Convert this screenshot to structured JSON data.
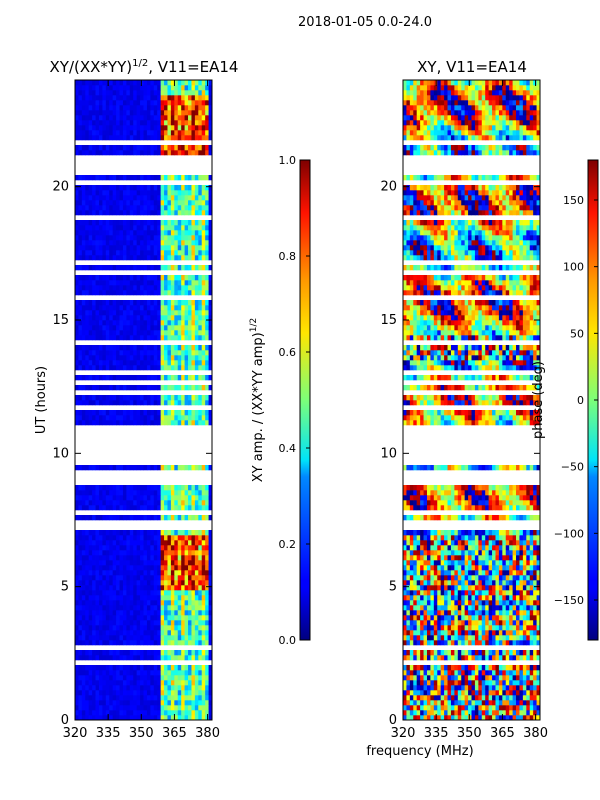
{
  "suptitle": "2018-01-05 0.0-24.0",
  "xlabel_shared": "frequency (MHz)",
  "chart_data": [
    {
      "type": "heatmap",
      "title_main": "XY/(XX*YY)",
      "title_sup": "1/2",
      "title_tail": ", V11=EA14",
      "ylabel": "UT (hours)",
      "xlim": [
        320,
        382
      ],
      "ylim": [
        0,
        24
      ],
      "xticks": [
        "320",
        "335",
        "350",
        "365",
        "380"
      ],
      "xtick_values": [
        320,
        335,
        350,
        365,
        380
      ],
      "yticks": [
        "0",
        "5",
        "10",
        "15",
        "20"
      ],
      "ytick_values": [
        0,
        5,
        10,
        15,
        20
      ],
      "bright_band_mhz": [
        359,
        381
      ],
      "colorbar": {
        "label_main": "XY amp. / (XX*YY amp)",
        "label_sup": "1/2",
        "ticks": [
          "0.0",
          "0.2",
          "0.4",
          "0.6",
          "0.8",
          "1.0"
        ],
        "tick_values": [
          0.0,
          0.2,
          0.4,
          0.6,
          0.8,
          1.0
        ],
        "range": [
          0.0,
          1.0
        ]
      }
    },
    {
      "type": "heatmap",
      "title_main": "XY, V11=EA14",
      "ylabel": "",
      "xlim": [
        320,
        382
      ],
      "ylim": [
        0,
        24
      ],
      "xticks": [
        "320",
        "335",
        "350",
        "365",
        "380"
      ],
      "xtick_values": [
        320,
        335,
        350,
        365,
        380
      ],
      "yticks": [
        "0",
        "5",
        "10",
        "15",
        "20"
      ],
      "ytick_values": [
        0,
        5,
        10,
        15,
        20
      ],
      "colorbar": {
        "label_main": "phase (deg)",
        "ticks": [
          "−150",
          "−100",
          "−50",
          "0",
          "50",
          "100",
          "150"
        ],
        "tick_values": [
          -150,
          -100,
          -50,
          0,
          50,
          100,
          150
        ],
        "range": [
          -180,
          180
        ]
      }
    }
  ],
  "colors": {
    "jet_low": "#00007f",
    "jet_mid": "#7fff7f",
    "jet_high": "#7f0000"
  }
}
